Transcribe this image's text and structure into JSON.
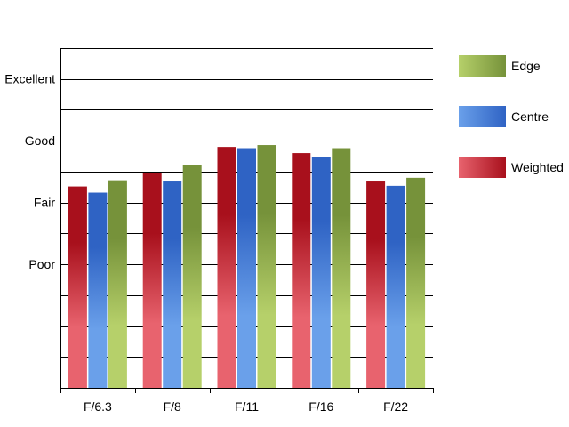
{
  "chart_data": {
    "type": "bar",
    "categories": [
      "F/6.3",
      "F/8",
      "F/11",
      "F/16",
      "F/22"
    ],
    "series": [
      {
        "name": "Weighted",
        "values": [
          2.26,
          2.47,
          2.9,
          2.8,
          2.34
        ]
      },
      {
        "name": "Centre",
        "values": [
          2.16,
          2.34,
          2.88,
          2.74,
          2.27
        ]
      },
      {
        "name": "Edge",
        "values": [
          2.36,
          2.61,
          2.93,
          2.88,
          2.4
        ]
      }
    ],
    "y_tick_labels": [
      "Poor",
      "Fair",
      "Good",
      "Excellent"
    ],
    "y_tick_values": [
      1,
      2,
      3,
      4
    ],
    "ylim": [
      -1,
      4.5
    ],
    "grid": true,
    "legend_position": "right",
    "legend_order": [
      "Edge",
      "Centre",
      "Weighted"
    ],
    "colors": {
      "Weighted": {
        "light": "#e8636e",
        "dark": "#a8101c"
      },
      "Centre": {
        "light": "#6aa0ea",
        "dark": "#2f63c4"
      },
      "Edge": {
        "light": "#b6d06a",
        "dark": "#76923a"
      }
    }
  }
}
